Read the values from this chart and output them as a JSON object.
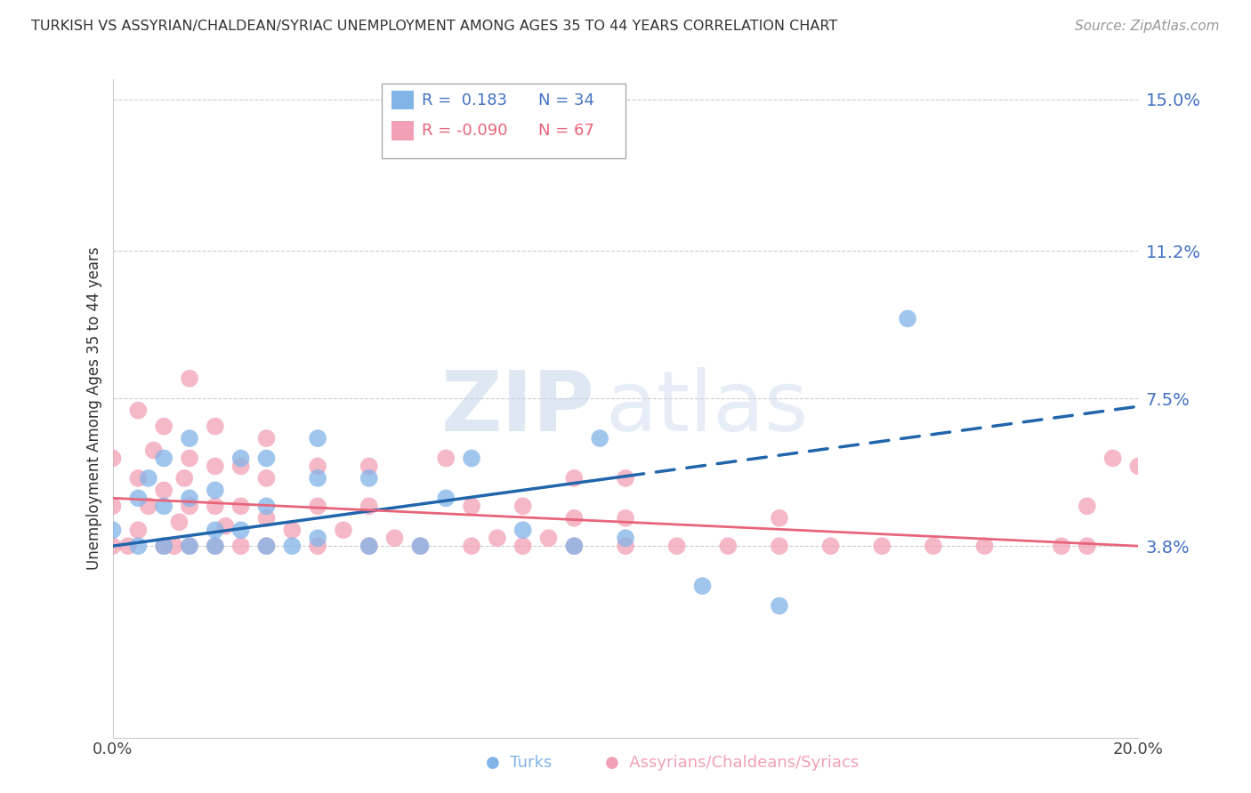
{
  "title": "TURKISH VS ASSYRIAN/CHALDEAN/SYRIAC UNEMPLOYMENT AMONG AGES 35 TO 44 YEARS CORRELATION CHART",
  "source": "Source: ZipAtlas.com",
  "ylabel": "Unemployment Among Ages 35 to 44 years",
  "xlim": [
    0.0,
    0.2
  ],
  "ylim": [
    -0.01,
    0.155
  ],
  "yticks": [
    0.038,
    0.075,
    0.112,
    0.15
  ],
  "ytick_labels": [
    "3.8%",
    "7.5%",
    "11.2%",
    "15.0%"
  ],
  "xticks": [
    0.0,
    0.2
  ],
  "xtick_labels": [
    "0.0%",
    "20.0%"
  ],
  "r_turks": 0.183,
  "n_turks": 34,
  "r_assyrians": -0.09,
  "n_assyrians": 67,
  "color_turks": "#82b4e8",
  "color_assyrians": "#f2a0b5",
  "color_trend_turks": "#2166ac",
  "color_trend_assyrians": "#e8647a",
  "watermark": "ZIPatlas",
  "turks_x": [
    0.0,
    0.005,
    0.005,
    0.007,
    0.01,
    0.01,
    0.01,
    0.015,
    0.015,
    0.015,
    0.02,
    0.02,
    0.02,
    0.025,
    0.025,
    0.03,
    0.03,
    0.03,
    0.035,
    0.04,
    0.04,
    0.04,
    0.05,
    0.05,
    0.06,
    0.065,
    0.07,
    0.08,
    0.09,
    0.095,
    0.1,
    0.115,
    0.13,
    0.155
  ],
  "turks_y": [
    0.042,
    0.038,
    0.05,
    0.055,
    0.038,
    0.048,
    0.06,
    0.038,
    0.05,
    0.065,
    0.042,
    0.052,
    0.038,
    0.042,
    0.06,
    0.038,
    0.048,
    0.06,
    0.038,
    0.04,
    0.055,
    0.065,
    0.038,
    0.055,
    0.038,
    0.05,
    0.06,
    0.042,
    0.038,
    0.065,
    0.04,
    0.028,
    0.023,
    0.095
  ],
  "assyrians_x": [
    0.0,
    0.0,
    0.0,
    0.003,
    0.005,
    0.005,
    0.005,
    0.007,
    0.008,
    0.01,
    0.01,
    0.01,
    0.012,
    0.013,
    0.014,
    0.015,
    0.015,
    0.015,
    0.015,
    0.02,
    0.02,
    0.02,
    0.02,
    0.022,
    0.025,
    0.025,
    0.025,
    0.03,
    0.03,
    0.03,
    0.03,
    0.035,
    0.04,
    0.04,
    0.04,
    0.045,
    0.05,
    0.05,
    0.05,
    0.055,
    0.06,
    0.065,
    0.07,
    0.07,
    0.075,
    0.08,
    0.08,
    0.085,
    0.09,
    0.09,
    0.09,
    0.1,
    0.1,
    0.1,
    0.11,
    0.12,
    0.13,
    0.13,
    0.14,
    0.15,
    0.16,
    0.17,
    0.185,
    0.19,
    0.19,
    0.195,
    0.2
  ],
  "assyrians_y": [
    0.038,
    0.048,
    0.06,
    0.038,
    0.042,
    0.055,
    0.072,
    0.048,
    0.062,
    0.038,
    0.052,
    0.068,
    0.038,
    0.044,
    0.055,
    0.038,
    0.048,
    0.06,
    0.08,
    0.038,
    0.048,
    0.058,
    0.068,
    0.043,
    0.038,
    0.048,
    0.058,
    0.038,
    0.045,
    0.055,
    0.065,
    0.042,
    0.038,
    0.048,
    0.058,
    0.042,
    0.038,
    0.048,
    0.058,
    0.04,
    0.038,
    0.06,
    0.038,
    0.048,
    0.04,
    0.038,
    0.048,
    0.04,
    0.038,
    0.045,
    0.055,
    0.038,
    0.045,
    0.055,
    0.038,
    0.038,
    0.038,
    0.045,
    0.038,
    0.038,
    0.038,
    0.038,
    0.038,
    0.038,
    0.048,
    0.06,
    0.058
  ],
  "turks_trend_x0": 0.0,
  "turks_trend_y0": 0.038,
  "turks_trend_x1": 0.2,
  "turks_trend_y1": 0.073,
  "turks_solid_xend": 0.1,
  "assyrians_trend_x0": 0.0,
  "assyrians_trend_y0": 0.05,
  "assyrians_trend_x1": 0.2,
  "assyrians_trend_y1": 0.038
}
